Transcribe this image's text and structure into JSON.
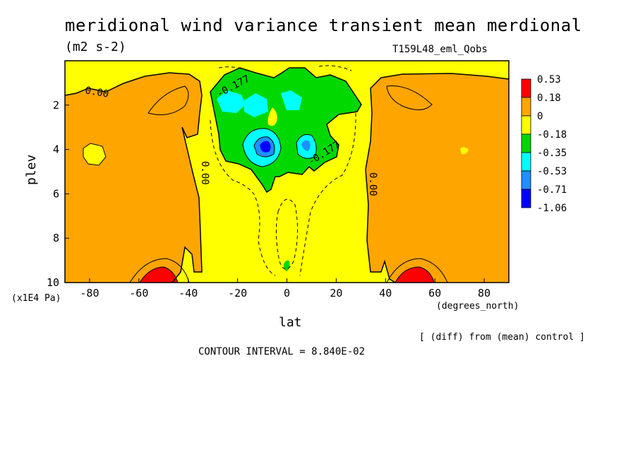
{
  "chart_data": {
    "type": "heatmap",
    "title": "meridional wind variance transient mean merdional",
    "units": "(m2 s-2)",
    "run": "T159L48_eml_Qobs",
    "xlabel": "lat",
    "xunit": "(degrees_north)",
    "ylabel": "plev",
    "yunit": "(x1E4 Pa)",
    "xlim": [
      -90,
      90
    ],
    "ylim": [
      10,
      0
    ],
    "x_ticks": [
      "-80",
      "-60",
      "-40",
      "-20",
      "0",
      "20",
      "40",
      "60",
      "80"
    ],
    "y_ticks": [
      "2",
      "4",
      "6",
      "8",
      "10"
    ],
    "levels": [
      "0.53",
      "0.18",
      "0",
      "-0.18",
      "-0.35",
      "-0.53",
      "-0.71",
      "-1.06"
    ],
    "level_colors": [
      "#ff0000",
      "#ffa500",
      "#ffff00",
      "#00d800",
      "#00ffff",
      "#1e90ff",
      "#0000ff"
    ],
    "contour_labels": [
      "0.00",
      "0.00",
      "0.00",
      "-0.177",
      "-0.177"
    ],
    "note": "[ (diff) from (mean) control ]",
    "contour_interval": "CONTOUR INTERVAL = 8.840E-02",
    "regions": [
      {
        "level": "positive",
        "color": "#ffa500",
        "lat_range": [
          -90,
          -32
        ],
        "plev_range": [
          1.2,
          10
        ]
      },
      {
        "level": "positive",
        "color": "#ffa500",
        "lat_range": [
          33,
          90
        ],
        "plev_range": [
          0.8,
          10
        ]
      },
      {
        "level": "negative",
        "color": "#00d800",
        "lat_range": [
          -27,
          31
        ],
        "plev_range": [
          0.3,
          6.0
        ]
      },
      {
        "level": "min",
        "value": -1.06,
        "lat": -8,
        "plev": 3.9
      },
      {
        "level": "max",
        "value": 0.53,
        "lat": -52,
        "plev": 9.8
      },
      {
        "level": "max",
        "value": 0.53,
        "lat": 52,
        "plev": 9.8
      }
    ]
  }
}
